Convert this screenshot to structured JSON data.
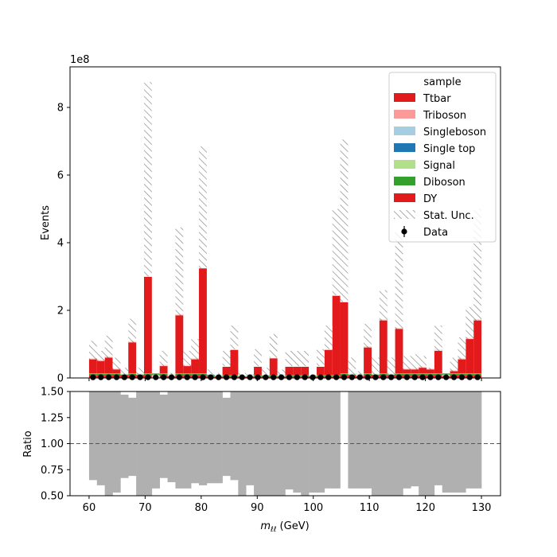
{
  "chart_data": [
    {
      "type": "bar",
      "subtype": "stacked-histogram",
      "xlim": [
        56.6,
        133.4
      ],
      "ylim": [
        0,
        9.2
      ],
      "y_scale_label": "1e8",
      "ylabel": "Events",
      "xticks": [
        60,
        70,
        80,
        90,
        100,
        110,
        120,
        130
      ],
      "yticks": [
        0,
        2,
        4,
        6,
        8
      ],
      "bin_edges": [
        60,
        61.4,
        62.8,
        64.2,
        65.6,
        67.0,
        68.4,
        69.8,
        71.2,
        72.6,
        74.0,
        75.4,
        76.8,
        78.2,
        79.6,
        81.0,
        82.4,
        83.8,
        85.2,
        86.6,
        88.0,
        89.4,
        90.8,
        92.2,
        93.6,
        95.0,
        96.4,
        97.8,
        99.2,
        100.6,
        102.0,
        103.4,
        104.8,
        106.2,
        107.6,
        109.0,
        110.4,
        111.8,
        113.2,
        114.6,
        116.0,
        117.4,
        118.8,
        120.2,
        121.6,
        123.0,
        124.4,
        125.8,
        127.2,
        128.6,
        130.0
      ],
      "legend": {
        "title": "sample",
        "placement": "upper right",
        "entries": [
          "Ttbar",
          "Triboson",
          "Singleboson",
          "Single top",
          "Signal",
          "Diboson",
          "DY",
          "Stat. Unc.",
          "Data"
        ]
      },
      "colors": {
        "Ttbar": "#e31a1c",
        "Triboson": "#fb9a99",
        "Singleboson": "#a6cee3",
        "Single top": "#1f78b4",
        "Signal": "#b2df8a",
        "Diboson": "#33a02c",
        "DY": "#e31a1c"
      },
      "series": [
        {
          "name": "DY",
          "values": [
            0.08,
            0.08,
            0.08,
            0.08,
            0.08,
            0.08,
            0.08,
            0.08,
            0.08,
            0.08,
            0.08,
            0.08,
            0.08,
            0.08,
            0.08,
            0.04,
            0.04,
            0.04,
            0.04,
            0.04,
            0.04,
            0.04,
            0.04,
            0.04,
            0.04,
            0.04,
            0.04,
            0.04,
            0.04,
            0.04,
            0.04,
            0.04,
            0.08,
            0.08,
            0.08,
            0.08,
            0.08,
            0.08,
            0.08,
            0.08,
            0.08,
            0.08,
            0.08,
            0.08,
            0.08,
            0.08,
            0.08,
            0.08,
            0.08,
            0.08
          ]
        },
        {
          "name": "Diboson",
          "values": [
            0.05,
            0.05,
            0.05,
            0.05,
            0.05,
            0.05,
            0.05,
            0.05,
            0.05,
            0.05,
            0.05,
            0.05,
            0.05,
            0.05,
            0.05,
            0.03,
            0.03,
            0.03,
            0.03,
            0.03,
            0.03,
            0.03,
            0.03,
            0.03,
            0.03,
            0.03,
            0.03,
            0.03,
            0.03,
            0.03,
            0.03,
            0.03,
            0.05,
            0.05,
            0.05,
            0.05,
            0.05,
            0.05,
            0.05,
            0.05,
            0.05,
            0.05,
            0.05,
            0.05,
            0.05,
            0.05,
            0.05,
            0.05,
            0.05,
            0.05
          ]
        },
        {
          "name": "Signal",
          "values": [
            0.01,
            0.01,
            0.01,
            0.01,
            0.01,
            0.01,
            0.01,
            0.01,
            0.01,
            0.01,
            0.01,
            0.01,
            0.01,
            0.01,
            0.01,
            0.01,
            0.01,
            0.01,
            0.01,
            0.01,
            0.01,
            0.01,
            0.01,
            0.01,
            0.01,
            0.01,
            0.01,
            0.01,
            0.01,
            0.01,
            0.01,
            0.01,
            0.01,
            0.01,
            0.01,
            0.01,
            0.01,
            0.01,
            0.01,
            0.01,
            0.01,
            0.01,
            0.01,
            0.01,
            0.01,
            0.01,
            0.01,
            0.01,
            0.01,
            0.01
          ]
        },
        {
          "name": "Single top",
          "values": [
            0,
            0,
            0,
            0,
            0,
            0,
            0,
            0,
            0,
            0,
            0,
            0,
            0,
            0,
            0,
            0.02,
            0.02,
            0,
            0,
            0,
            0.02,
            0,
            0,
            0,
            0.04,
            0,
            0,
            0,
            0,
            0,
            0,
            0,
            0,
            0,
            0,
            0,
            0,
            0,
            0,
            0,
            0,
            0,
            0,
            0,
            0,
            0,
            0,
            0,
            0,
            0
          ]
        },
        {
          "name": "Singleboson",
          "values": [
            0,
            0,
            0,
            0,
            0,
            0,
            0,
            0,
            0,
            0,
            0,
            0,
            0,
            0,
            0,
            0.05,
            0.02,
            0,
            0,
            0,
            0,
            0,
            0,
            0,
            0,
            0,
            0,
            0,
            0,
            0,
            0,
            0,
            0,
            0,
            0,
            0,
            0,
            0,
            0,
            0,
            0,
            0,
            0,
            0,
            0,
            0,
            0,
            0,
            0,
            0
          ]
        },
        {
          "name": "Triboson",
          "values": [
            0,
            0,
            0,
            0,
            0,
            0,
            0,
            0,
            0,
            0,
            0,
            0,
            0,
            0,
            0,
            0,
            0,
            0,
            0,
            0,
            0,
            0,
            0,
            0,
            0,
            0,
            0,
            0,
            0,
            0,
            0,
            0,
            0,
            0,
            0,
            0,
            0,
            0,
            0,
            0,
            0,
            0,
            0,
            0,
            0,
            0,
            0,
            0,
            0,
            0
          ]
        },
        {
          "name": "Ttbar",
          "values": [
            0.45,
            0.4,
            0.5,
            0.15,
            0.0,
            0.95,
            0.0,
            2.85,
            0.0,
            0.25,
            0.0,
            1.75,
            0.25,
            0.45,
            3.1,
            0.0,
            0.0,
            0.25,
            0.75,
            0.0,
            0.0,
            0.25,
            0.0,
            0.5,
            0.0,
            0.25,
            0.25,
            0.25,
            0.0,
            0.25,
            0.75,
            2.35,
            2.1,
            0.0,
            0.0,
            0.8,
            0.0,
            1.6,
            0.0,
            1.35,
            0.15,
            0.15,
            0.2,
            0.15,
            0.7,
            0.0,
            0.1,
            0.45,
            1.05,
            1.6
          ]
        }
      ],
      "unc_band": {
        "name": "Stat. Unc.",
        "up": [
          1.1,
          0.8,
          1.25,
          0.6,
          0.3,
          1.75,
          0.3,
          8.75,
          0.1,
          0.8,
          0.15,
          4.45,
          0.8,
          1.15,
          6.85,
          0.25,
          0.15,
          0.8,
          1.55,
          0.15,
          0.1,
          0.85,
          0.3,
          1.3,
          0.25,
          0.8,
          0.8,
          0.8,
          0.1,
          0.85,
          1.55,
          5.0,
          7.05,
          0.6,
          0.2,
          1.6,
          0.6,
          2.6,
          0.6,
          4.3,
          0.65,
          0.7,
          0.65,
          0.3,
          1.55,
          0.1,
          0.6,
          1.2,
          2.1,
          5.0
        ],
        "down": [
          0.55,
          0.5,
          0.6,
          0.25,
          0.1,
          1.05,
          0.1,
          3.0,
          0.0,
          0.35,
          0.05,
          1.85,
          0.35,
          0.55,
          3.25,
          0.1,
          0.05,
          0.35,
          0.85,
          0.05,
          0.05,
          0.35,
          0.1,
          0.6,
          0.05,
          0.35,
          0.35,
          0.35,
          0.05,
          0.35,
          0.85,
          2.45,
          2.25,
          0.1,
          0.05,
          0.9,
          0.1,
          1.7,
          0.1,
          1.45,
          0.25,
          0.25,
          0.3,
          0.25,
          0.8,
          0.05,
          0.2,
          0.55,
          1.15,
          1.7
        ]
      },
      "data_points": {
        "name": "Data",
        "values": [
          0.02,
          0.02,
          0.02,
          0.02,
          0.02,
          0.02,
          0.02,
          0.02,
          0.02,
          0.02,
          0.02,
          0.02,
          0.02,
          0.02,
          0.02,
          0.02,
          0.02,
          0.02,
          0.02,
          0.02,
          0.02,
          0.02,
          0.02,
          0.02,
          0.02,
          0.02,
          0.02,
          0.02,
          0.02,
          0.02,
          0.02,
          0.02,
          0.02,
          0.02,
          0.02,
          0.02,
          0.02,
          0.02,
          0.02,
          0.02,
          0.02,
          0.02,
          0.02,
          0.02,
          0.02,
          0.02,
          0.02,
          0.02,
          0.02,
          0.02
        ]
      }
    },
    {
      "type": "bar",
      "subtype": "ratio-band",
      "xlabel": "m_{ℓℓ} (GeV)",
      "xlabel_main": "m",
      "xlabel_sub": "ℓℓ",
      "xlabel_unit": " (GeV)",
      "ylabel": "Ratio",
      "xlim": [
        56.6,
        133.4
      ],
      "ylim": [
        0.5,
        1.5
      ],
      "xticks": [
        60,
        70,
        80,
        90,
        100,
        110,
        120,
        130
      ],
      "yticks": [
        0.5,
        0.75,
        1.0,
        1.25,
        1.5
      ],
      "ytick_labels": [
        "0.50",
        "0.75",
        "1.00",
        "1.25",
        "1.50"
      ],
      "reference_line": 1.0,
      "band_color": "#b0b0b0",
      "band_low": [
        0.65,
        0.6,
        0.5,
        0.53,
        0.67,
        0.69,
        0.5,
        0.5,
        0.57,
        0.67,
        0.63,
        0.57,
        0.57,
        0.62,
        0.6,
        0.62,
        0.62,
        0.69,
        0.65,
        0.5,
        0.6,
        0.5,
        0.5,
        0.5,
        0.5,
        0.56,
        0.53,
        0.5,
        0.53,
        0.53,
        0.57,
        0.57,
        null,
        0.57,
        0.57,
        0.57,
        0.5,
        0.5,
        0.5,
        0.5,
        0.57,
        0.59,
        0.5,
        0.5,
        0.6,
        0.53,
        0.53,
        0.53,
        0.57,
        0.57
      ],
      "band_high": [
        1.5,
        1.5,
        1.5,
        1.5,
        1.47,
        1.44,
        1.5,
        1.5,
        1.5,
        1.47,
        1.5,
        1.5,
        1.5,
        1.5,
        1.5,
        1.5,
        1.5,
        1.44,
        1.5,
        1.5,
        1.5,
        1.5,
        1.5,
        1.5,
        1.5,
        1.5,
        1.5,
        1.5,
        1.5,
        1.5,
        1.5,
        1.5,
        null,
        1.5,
        1.5,
        1.5,
        1.5,
        1.5,
        1.5,
        1.5,
        1.5,
        1.5,
        1.5,
        1.5,
        1.5,
        1.5,
        1.5,
        1.5,
        1.5,
        1.5
      ]
    }
  ]
}
